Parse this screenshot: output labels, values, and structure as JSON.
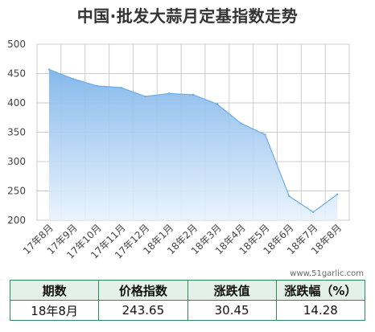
{
  "chart_data": {
    "type": "area",
    "title": "中国·批发大蒜月定基指数走势",
    "categories": [
      "17年8月",
      "17年9月",
      "17年10月",
      "17年11月",
      "17年12月",
      "18年1月",
      "18年2月",
      "18年3月",
      "18年4月",
      "18年5月",
      "18年6月",
      "18年7月",
      "18年8月"
    ],
    "values": [
      457,
      441,
      429,
      426,
      411,
      416,
      414,
      398,
      365,
      346,
      241,
      214,
      244
    ],
    "ylim": [
      200,
      500
    ],
    "yticks": [
      200,
      250,
      300,
      350,
      400,
      450,
      500
    ],
    "grid": true,
    "line_color": "#6aaee6",
    "fill_top_color": "#7fb4ea",
    "fill_bottom_color": "#e8f2fc"
  },
  "watermark": "www.51garlic.com",
  "table": {
    "headers": [
      "期数",
      "价格指数",
      "涨跌值",
      "涨跌幅（%）"
    ],
    "row": [
      "18年8月",
      "243.65",
      "30.45",
      "14.28"
    ]
  }
}
